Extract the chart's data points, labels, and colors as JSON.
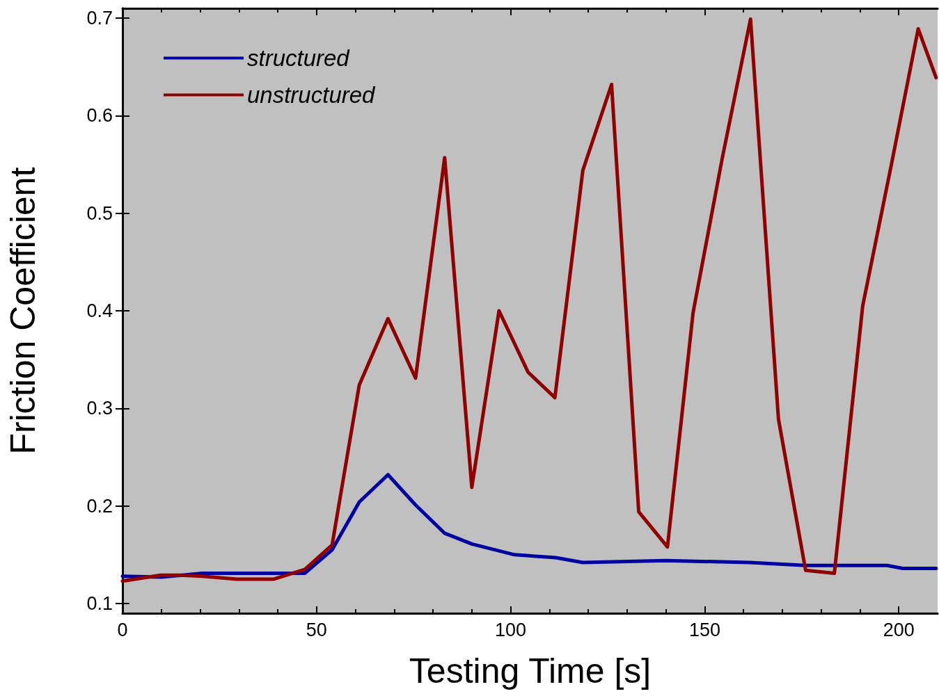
{
  "chart_data": {
    "type": "line",
    "xlabel": "Testing Time [s]",
    "ylabel": "Friction Coefficient",
    "xlim": [
      0,
      210
    ],
    "xticks": [
      0,
      50,
      100,
      150,
      200
    ],
    "ylim": [
      0.09,
      0.71
    ],
    "yticks": [
      0.1,
      0.2,
      0.3,
      0.4,
      0.5,
      0.6,
      0.7
    ],
    "grid": false,
    "legend": "top left",
    "marker": "none",
    "line_style": "solid",
    "series": [
      {
        "name": "structured",
        "color": "#0000a0",
        "x": [
          0,
          10,
          20.5,
          29.5,
          47,
          54,
          61,
          68.4,
          75.5,
          83,
          90,
          101,
          111.6,
          118.6,
          140,
          161.6,
          176,
          197,
          201,
          209.6
        ],
        "values": [
          0.128,
          0.127,
          0.131,
          0.131,
          0.131,
          0.155,
          0.204,
          0.232,
          0.201,
          0.172,
          0.161,
          0.15,
          0.147,
          0.142,
          0.144,
          0.142,
          0.139,
          0.139,
          0.136,
          0.136
        ]
      },
      {
        "name": "unstructured",
        "color": "#900000",
        "x": [
          0,
          9.8,
          15,
          20.5,
          29.5,
          39,
          47,
          54,
          61,
          68.4,
          75.5,
          83,
          90,
          97,
          104.5,
          111.4,
          118.6,
          126,
          133,
          140.4,
          147,
          154.5,
          161.8,
          169,
          176,
          183.4,
          190.7,
          198,
          205,
          209.6
        ],
        "values": [
          0.123,
          0.129,
          0.129,
          0.128,
          0.125,
          0.125,
          0.135,
          0.16,
          0.324,
          0.392,
          0.331,
          0.557,
          0.219,
          0.4,
          0.337,
          0.311,
          0.544,
          0.632,
          0.194,
          0.158,
          0.398,
          0.556,
          0.699,
          0.289,
          0.134,
          0.131,
          0.405,
          0.548,
          0.689,
          0.639
        ]
      }
    ]
  }
}
